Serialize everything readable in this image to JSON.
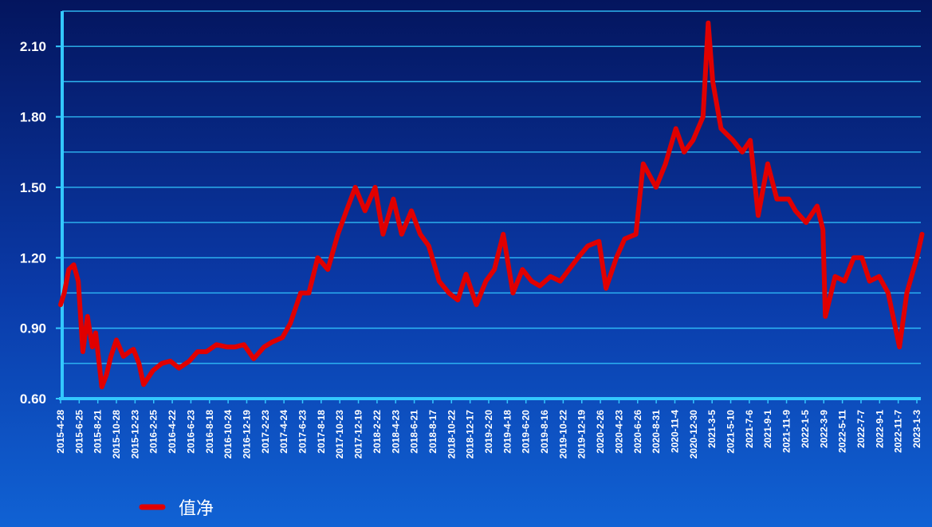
{
  "chart_data": {
    "type": "line",
    "title": "",
    "xlabel": "",
    "ylabel": "",
    "ylim": [
      0.6,
      2.25
    ],
    "grid": true,
    "legend_position": "bottom-left",
    "colors": {
      "line": "#e00000",
      "grid": "#33c8ff",
      "axis": "#33c8ff",
      "text": "#ffffff"
    },
    "y_ticks": [
      "0.60",
      "0.90",
      "1.20",
      "1.50",
      "1.80",
      "2.10"
    ],
    "x_ticks": [
      "2015-4-28",
      "2015-6-25",
      "2015-8-21",
      "2015-10-28",
      "2015-12-23",
      "2016-2-25",
      "2016-4-22",
      "2016-6-23",
      "2016-8-18",
      "2016-10-24",
      "2016-12-19",
      "2017-2-23",
      "2017-4-24",
      "2017-6-23",
      "2017-8-18",
      "2017-10-23",
      "2017-12-19",
      "2018-2-22",
      "2018-4-23",
      "2018-6-21",
      "2018-8-17",
      "2018-10-22",
      "2018-12-17",
      "2019-2-20",
      "2019-4-18",
      "2019-6-20",
      "2019-8-16",
      "2019-10-22",
      "2019-12-19",
      "2020-2-26",
      "2020-4-23",
      "2020-6-26",
      "2020-8-31",
      "2020-11-4",
      "2020-12-30",
      "2021-3-5",
      "2021-5-10",
      "2021-7-6",
      "2021-9-1",
      "2021-11-9",
      "2022-1-5",
      "2022-3-9",
      "2022-5-11",
      "2022-7-7",
      "2022-9-1",
      "2022-11-7",
      "2023-1-3"
    ],
    "series": [
      {
        "name": "值净",
        "x": [
          "2015-4-28",
          "2015-5-10",
          "2015-5-25",
          "2015-6-10",
          "2015-6-25",
          "2015-7-10",
          "2015-7-25",
          "2015-8-10",
          "2015-8-21",
          "2015-9-10",
          "2015-9-25",
          "2015-10-10",
          "2015-10-28",
          "2015-11-20",
          "2015-12-10",
          "2015-12-23",
          "2016-1-10",
          "2016-1-25",
          "2016-2-25",
          "2016-3-25",
          "2016-4-22",
          "2016-5-20",
          "2016-6-23",
          "2016-7-20",
          "2016-8-18",
          "2016-9-20",
          "2016-10-24",
          "2016-11-20",
          "2016-12-19",
          "2017-1-20",
          "2017-2-23",
          "2017-3-20",
          "2017-4-24",
          "2017-5-20",
          "2017-6-23",
          "2017-7-20",
          "2017-8-18",
          "2017-9-20",
          "2017-10-23",
          "2017-11-20",
          "2017-12-19",
          "2018-1-20",
          "2018-2-22",
          "2018-3-20",
          "2018-4-23",
          "2018-5-20",
          "2018-6-21",
          "2018-7-20",
          "2018-8-17",
          "2018-9-20",
          "2018-10-22",
          "2018-11-20",
          "2018-12-17",
          "2019-1-20",
          "2019-2-20",
          "2019-3-20",
          "2019-4-18",
          "2019-5-20",
          "2019-6-20",
          "2019-7-20",
          "2019-8-16",
          "2019-9-20",
          "2019-10-22",
          "2019-11-20",
          "2019-12-19",
          "2020-1-20",
          "2020-2-26",
          "2020-3-20",
          "2020-4-23",
          "2020-5-20",
          "2020-6-26",
          "2020-7-20",
          "2020-8-31",
          "2020-10-1",
          "2020-11-4",
          "2020-12-1",
          "2020-12-30",
          "2021-2-1",
          "2021-2-18",
          "2021-3-5",
          "2021-4-1",
          "2021-5-10",
          "2021-6-10",
          "2021-7-6",
          "2021-8-1",
          "2021-9-1",
          "2021-10-1",
          "2021-11-9",
          "2021-12-1",
          "2022-1-5",
          "2022-2-10",
          "2022-3-1",
          "2022-3-9",
          "2022-4-10",
          "2022-5-11",
          "2022-6-10",
          "2022-7-7",
          "2022-8-1",
          "2022-9-1",
          "2022-10-1",
          "2022-11-7",
          "2022-12-1",
          "2023-1-3",
          "2023-1-20"
        ],
        "values": [
          1.0,
          1.05,
          1.15,
          1.17,
          1.1,
          0.8,
          0.95,
          0.82,
          0.88,
          0.65,
          0.7,
          0.78,
          0.85,
          0.78,
          0.8,
          0.81,
          0.75,
          0.66,
          0.72,
          0.75,
          0.76,
          0.73,
          0.76,
          0.8,
          0.8,
          0.83,
          0.82,
          0.82,
          0.83,
          0.77,
          0.82,
          0.84,
          0.86,
          0.92,
          1.05,
          1.05,
          1.2,
          1.15,
          1.3,
          1.4,
          1.5,
          1.4,
          1.5,
          1.3,
          1.45,
          1.3,
          1.4,
          1.3,
          1.25,
          1.1,
          1.05,
          1.02,
          1.13,
          1.0,
          1.1,
          1.15,
          1.3,
          1.05,
          1.15,
          1.1,
          1.08,
          1.12,
          1.1,
          1.15,
          1.2,
          1.25,
          1.27,
          1.07,
          1.2,
          1.28,
          1.3,
          1.6,
          1.5,
          1.6,
          1.75,
          1.65,
          1.7,
          1.8,
          2.2,
          1.95,
          1.75,
          1.7,
          1.65,
          1.7,
          1.38,
          1.6,
          1.45,
          1.45,
          1.4,
          1.35,
          1.42,
          1.32,
          0.95,
          1.12,
          1.1,
          1.2,
          1.2,
          1.1,
          1.12,
          1.05,
          0.82,
          1.05,
          1.2,
          1.3
        ]
      }
    ]
  }
}
